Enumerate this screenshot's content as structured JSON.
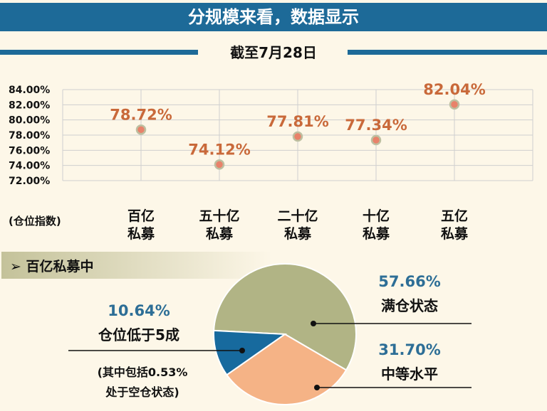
{
  "header": {
    "title": "分规模来看，数据显示",
    "subtitle": "截至7月28日"
  },
  "chart_data": [
    {
      "type": "scatter",
      "ylabel": "(仓位指数)",
      "ylim": [
        72,
        84
      ],
      "yticks": [
        "84.00%",
        "82.00%",
        "80.00%",
        "78.00%",
        "76.00%",
        "74.00%",
        "72.00%"
      ],
      "ytick_values": [
        84,
        82,
        80,
        78,
        76,
        74,
        72
      ],
      "grid": true,
      "categories": [
        [
          "百亿",
          "私募"
        ],
        [
          "五十亿",
          "私募"
        ],
        [
          "二十亿",
          "私募"
        ],
        [
          "十亿",
          "私募"
        ],
        [
          "五亿",
          "私募"
        ]
      ],
      "values": [
        78.72,
        74.12,
        77.81,
        77.34,
        82.04
      ],
      "labels": [
        "78.72%",
        "74.12%",
        "77.81%",
        "77.34%",
        "82.04%"
      ],
      "colors": {
        "point": "#e8826a",
        "label": "#c9693a",
        "grid": "#cfcfcf"
      }
    },
    {
      "type": "pie",
      "title": "百亿私募中",
      "slices": [
        {
          "name": "满仓状态",
          "value": 57.66,
          "label": "57.66%",
          "color": "#b1b485"
        },
        {
          "name": "中等水平",
          "value": 31.7,
          "label": "31.70%",
          "color": "#f5b386"
        },
        {
          "name": "仓位低于5成",
          "value": 10.64,
          "label": "10.64%",
          "color": "#176a9e",
          "note": [
            "(其中包括0.53%",
            "处于空仓状态)"
          ]
        }
      ]
    }
  ]
}
